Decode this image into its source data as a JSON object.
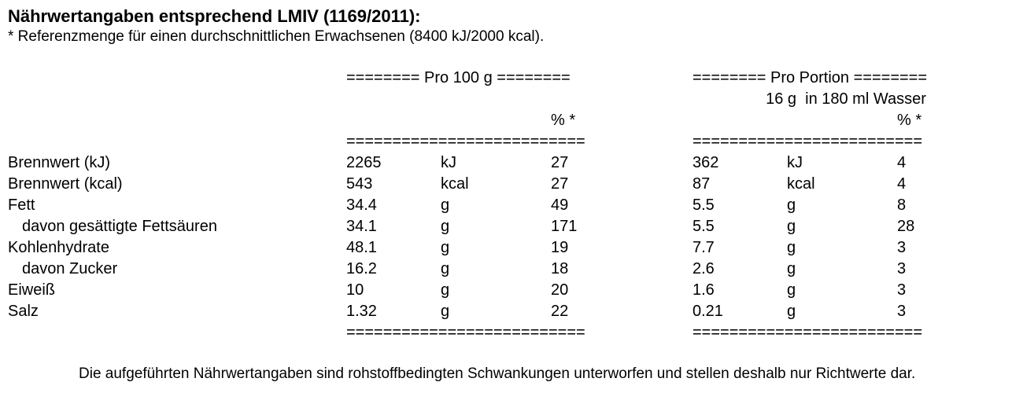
{
  "title": "Nährwertangaben entsprechend LMIV (1169/2011):",
  "subtitle": "* Referenzmenge für einen durchschnittlichen Erwachsenen (8400 kJ/2000 kcal).",
  "sections": {
    "left_header": "======== Pro 100 g ========",
    "right_header": "======== Pro Portion ========",
    "portion_line": "16 g  in 180 ml Wasser",
    "pct_label": "% *",
    "divider_long": "==========================",
    "divider_right": "========================="
  },
  "rows": [
    {
      "label": "Brennwert (kJ)",
      "indent": false,
      "v1": "2265",
      "u1": "kJ",
      "p1": "27",
      "v2": "362",
      "u2": "kJ",
      "p2": "4"
    },
    {
      "label": "Brennwert (kcal)",
      "indent": false,
      "v1": "543",
      "u1": "kcal",
      "p1": "27",
      "v2": "87",
      "u2": "kcal",
      "p2": "4"
    },
    {
      "label": "Fett",
      "indent": false,
      "v1": "34.4",
      "u1": "g",
      "p1": "49",
      "v2": "5.5",
      "u2": "g",
      "p2": "8"
    },
    {
      "label": "davon gesättigte Fettsäuren",
      "indent": true,
      "v1": "34.1",
      "u1": "g",
      "p1": "171",
      "v2": "5.5",
      "u2": "g",
      "p2": "28"
    },
    {
      "label": "Kohlenhydrate",
      "indent": false,
      "v1": "48.1",
      "u1": "g",
      "p1": "19",
      "v2": "7.7",
      "u2": "g",
      "p2": "3"
    },
    {
      "label": "davon Zucker",
      "indent": true,
      "v1": "16.2",
      "u1": "g",
      "p1": "18",
      "v2": "2.6",
      "u2": "g",
      "p2": "3"
    },
    {
      "label": "Eiweiß",
      "indent": false,
      "v1": "10",
      "u1": "g",
      "p1": "20",
      "v2": "1.6",
      "u2": "g",
      "p2": "3"
    },
    {
      "label": "Salz",
      "indent": false,
      "v1": "1.32",
      "u1": "g",
      "p1": "22",
      "v2": "0.21",
      "u2": "g",
      "p2": "3"
    }
  ],
  "footnote": "Die aufgeführten Nährwertangaben sind rohstoffbedingten Schwankungen unterworfen und stellen deshalb nur Richtwerte dar."
}
